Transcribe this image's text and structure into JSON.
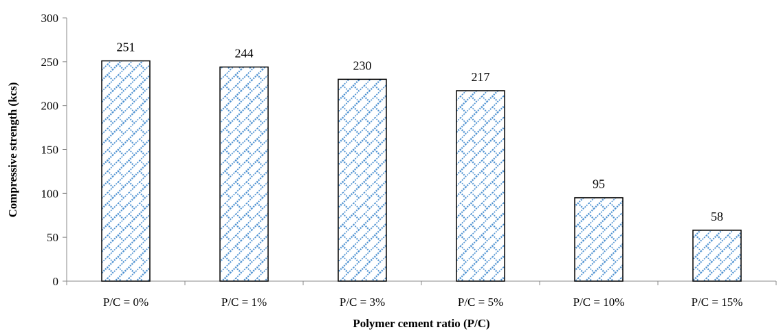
{
  "chart_data": {
    "type": "bar",
    "categories": [
      "P/C = 0%",
      "P/C = 1%",
      "P/C = 3%",
      "P/C = 5%",
      "P/C = 10%",
      "P/C = 15%"
    ],
    "values": [
      251,
      244,
      230,
      217,
      95,
      58
    ],
    "data_labels": [
      "251",
      "244",
      "230",
      "217",
      "95",
      "58"
    ],
    "title": "",
    "xlabel": "Polymer cement ratio (P/C)",
    "ylabel": "Compressive strength  (kcs)",
    "ylim": [
      0,
      300
    ],
    "yticks": [
      "0",
      "50",
      "100",
      "150",
      "200",
      "250",
      "300"
    ],
    "grid": false,
    "legend": "none",
    "bar_fill_pattern": "blue diagonal brick pattern",
    "bar_pattern_color": "#4a8fd0",
    "bar_outline_color": "#000000"
  }
}
